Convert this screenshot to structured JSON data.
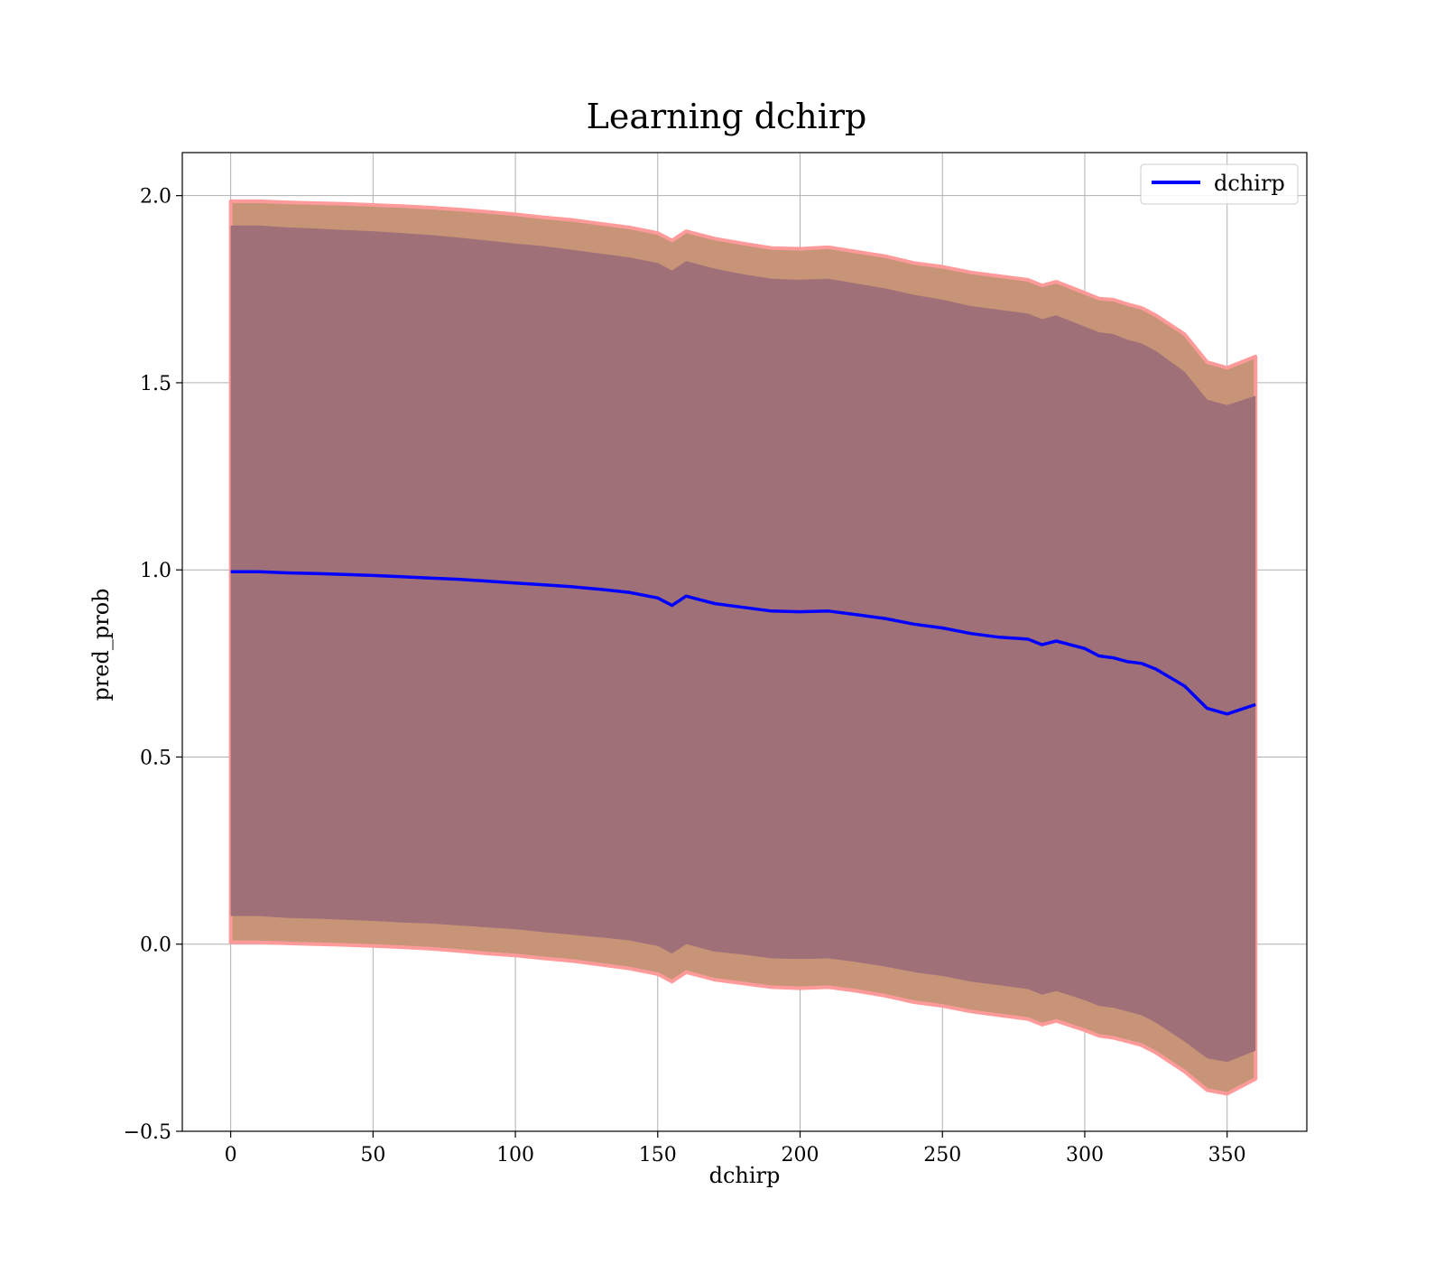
{
  "chart_data": {
    "type": "line",
    "title": "Learning dchirp",
    "xlabel": "dchirp",
    "ylabel": "pred_prob",
    "xlim": [
      -17,
      378
    ],
    "ylim": [
      -0.5,
      2.115
    ],
    "xticks": [
      0,
      50,
      100,
      150,
      200,
      250,
      300,
      350
    ],
    "yticks": [
      -0.5,
      0.0,
      0.5,
      1.0,
      1.5,
      2.0
    ],
    "xtick_labels": [
      "0",
      "50",
      "100",
      "150",
      "200",
      "250",
      "300",
      "350"
    ],
    "ytick_labels": [
      "−0.5",
      "0.0",
      "0.5",
      "1.0",
      "1.5",
      "2.0"
    ],
    "grid": true,
    "legend": {
      "position": "top-right",
      "entries": [
        "dchirp"
      ]
    },
    "colors": {
      "line": "#0000ff",
      "outer_band": "#c89478",
      "outer_band_edge": "#ff9a9a",
      "inner_band": "#a07078"
    },
    "series": [
      {
        "name": "dchirp",
        "x": [
          0,
          10,
          20,
          30,
          40,
          50,
          60,
          70,
          80,
          90,
          100,
          110,
          120,
          130,
          140,
          150,
          155,
          160,
          165,
          170,
          180,
          190,
          200,
          210,
          220,
          230,
          240,
          250,
          260,
          270,
          280,
          285,
          290,
          300,
          305,
          310,
          315,
          320,
          325,
          335,
          343,
          350,
          360
        ],
        "y": [
          0.995,
          0.995,
          0.992,
          0.99,
          0.988,
          0.985,
          0.982,
          0.978,
          0.975,
          0.97,
          0.965,
          0.96,
          0.955,
          0.948,
          0.94,
          0.925,
          0.905,
          0.93,
          0.92,
          0.91,
          0.9,
          0.89,
          0.888,
          0.89,
          0.88,
          0.87,
          0.855,
          0.845,
          0.83,
          0.82,
          0.815,
          0.8,
          0.81,
          0.79,
          0.77,
          0.765,
          0.755,
          0.75,
          0.735,
          0.69,
          0.63,
          0.615,
          0.64
        ]
      }
    ],
    "bands": [
      {
        "type": "outer",
        "x": [
          0,
          10,
          20,
          30,
          40,
          50,
          60,
          70,
          80,
          90,
          100,
          110,
          120,
          130,
          140,
          150,
          155,
          160,
          165,
          170,
          180,
          190,
          200,
          210,
          220,
          230,
          240,
          250,
          260,
          270,
          280,
          285,
          290,
          300,
          305,
          310,
          315,
          320,
          325,
          335,
          343,
          350,
          360
        ],
        "upper": [
          1.985,
          1.985,
          1.982,
          1.98,
          1.978,
          1.975,
          1.972,
          1.968,
          1.963,
          1.957,
          1.95,
          1.942,
          1.935,
          1.925,
          1.915,
          1.9,
          1.88,
          1.905,
          1.895,
          1.885,
          1.872,
          1.86,
          1.858,
          1.862,
          1.85,
          1.838,
          1.82,
          1.81,
          1.795,
          1.785,
          1.775,
          1.76,
          1.77,
          1.74,
          1.725,
          1.722,
          1.71,
          1.7,
          1.68,
          1.63,
          1.555,
          1.54,
          1.57
        ],
        "lower": [
          0.005,
          0.005,
          0.002,
          0.0,
          -0.002,
          -0.005,
          -0.008,
          -0.012,
          -0.018,
          -0.025,
          -0.03,
          -0.038,
          -0.045,
          -0.055,
          -0.065,
          -0.08,
          -0.1,
          -0.075,
          -0.085,
          -0.095,
          -0.105,
          -0.115,
          -0.118,
          -0.115,
          -0.125,
          -0.138,
          -0.155,
          -0.165,
          -0.18,
          -0.19,
          -0.2,
          -0.215,
          -0.205,
          -0.23,
          -0.245,
          -0.25,
          -0.26,
          -0.27,
          -0.29,
          -0.34,
          -0.39,
          -0.4,
          -0.36
        ]
      },
      {
        "type": "inner",
        "x": [
          0,
          10,
          20,
          30,
          40,
          50,
          60,
          70,
          80,
          90,
          100,
          110,
          120,
          130,
          140,
          150,
          155,
          160,
          165,
          170,
          180,
          190,
          200,
          210,
          220,
          230,
          240,
          250,
          260,
          270,
          280,
          285,
          290,
          300,
          305,
          310,
          315,
          320,
          325,
          335,
          343,
          350,
          360
        ],
        "upper": [
          1.92,
          1.92,
          1.915,
          1.912,
          1.908,
          1.905,
          1.9,
          1.895,
          1.888,
          1.88,
          1.872,
          1.865,
          1.855,
          1.845,
          1.835,
          1.82,
          1.8,
          1.825,
          1.815,
          1.805,
          1.79,
          1.778,
          1.775,
          1.778,
          1.765,
          1.752,
          1.735,
          1.722,
          1.705,
          1.695,
          1.685,
          1.67,
          1.68,
          1.65,
          1.635,
          1.63,
          1.615,
          1.605,
          1.585,
          1.53,
          1.455,
          1.44,
          1.465
        ],
        "lower": [
          0.075,
          0.075,
          0.07,
          0.068,
          0.065,
          0.062,
          0.058,
          0.055,
          0.05,
          0.045,
          0.04,
          0.032,
          0.025,
          0.018,
          0.01,
          -0.005,
          -0.025,
          0.0,
          -0.01,
          -0.02,
          -0.028,
          -0.038,
          -0.04,
          -0.038,
          -0.048,
          -0.06,
          -0.075,
          -0.085,
          -0.1,
          -0.11,
          -0.12,
          -0.135,
          -0.125,
          -0.15,
          -0.165,
          -0.17,
          -0.18,
          -0.19,
          -0.21,
          -0.26,
          -0.305,
          -0.315,
          -0.285
        ]
      }
    ]
  }
}
